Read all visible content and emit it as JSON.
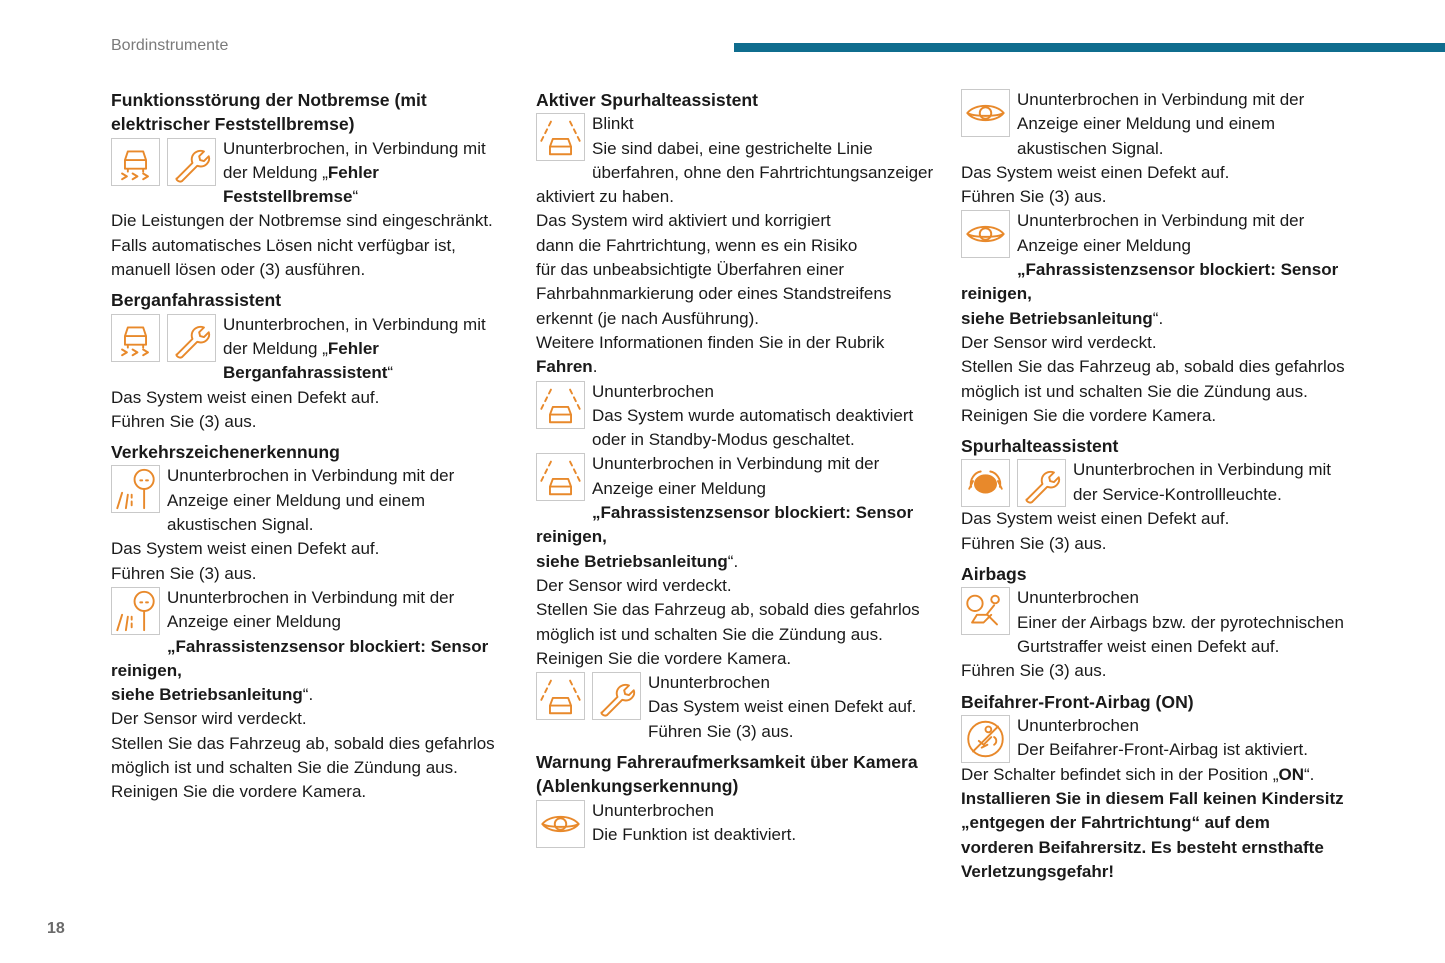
{
  "header": {
    "section": "Bordinstrumente",
    "page_number": "18",
    "bar_color": "#0f6d8e"
  },
  "icon_color": "#e8892b",
  "columns": [
    [
      {
        "type": "h",
        "text": "Funktionsstörung der Notbremse (mit\nelektrischer Feststellbremse)"
      },
      {
        "type": "p",
        "icons": [
          "brake-car",
          "wrench"
        ],
        "segs": [
          {
            "t": "Ununterbrochen, in Verbindung mit\nder Meldung „"
          },
          {
            "t": "Fehler\nFeststellbremse",
            "b": true
          },
          {
            "t": "“"
          }
        ]
      },
      {
        "type": "p",
        "segs": [
          {
            "t": "Die Leistungen der Notbremse sind eingeschränkt.\nFalls automatisches Lösen nicht verfügbar ist,\nmanuell lösen oder (3) ausführen."
          }
        ]
      },
      {
        "type": "h",
        "text": "Berganfahrassistent"
      },
      {
        "type": "p",
        "icons": [
          "brake-car",
          "wrench"
        ],
        "segs": [
          {
            "t": "Ununterbrochen, in Verbindung mit\nder Meldung „"
          },
          {
            "t": "Fehler\nBerganfahrassistent",
            "b": true
          },
          {
            "t": "“"
          }
        ]
      },
      {
        "type": "p",
        "segs": [
          {
            "t": "Das System weist einen Defekt auf."
          }
        ]
      },
      {
        "type": "p",
        "segs": [
          {
            "t": "Führen Sie (3) aus."
          }
        ]
      },
      {
        "type": "h",
        "text": "Verkehrszeichenerkennung"
      },
      {
        "type": "p",
        "icons": [
          "traffic-sign"
        ],
        "segs": [
          {
            "t": "Ununterbrochen in Verbindung mit der\nAnzeige einer Meldung und einem\nakustischen Signal."
          }
        ]
      },
      {
        "type": "p",
        "segs": [
          {
            "t": "Das System weist einen Defekt auf."
          }
        ]
      },
      {
        "type": "p",
        "segs": [
          {
            "t": "Führen Sie (3) aus."
          }
        ]
      },
      {
        "type": "p",
        "icons": [
          "traffic-sign"
        ],
        "segs": [
          {
            "t": "Ununterbrochen in Verbindung mit der\nAnzeige einer Meldung\n"
          },
          {
            "t": "„Fahrassistenzsensor blockiert: Sensor reinigen,\nsiehe Betriebsanleitung",
            "b": true
          },
          {
            "t": "“."
          }
        ]
      },
      {
        "type": "p",
        "segs": [
          {
            "t": "Der Sensor wird verdeckt."
          }
        ]
      },
      {
        "type": "p",
        "segs": [
          {
            "t": "Stellen Sie das Fahrzeug ab, sobald dies gefahrlos\nmöglich ist und schalten Sie die Zündung aus."
          }
        ]
      },
      {
        "type": "p",
        "segs": [
          {
            "t": "Reinigen Sie die vordere Kamera."
          }
        ]
      }
    ],
    [
      {
        "type": "h",
        "text": "Aktiver Spurhalteassistent"
      },
      {
        "type": "p",
        "icons": [
          "lane-assist"
        ],
        "segs": [
          {
            "t": "Blinkt\nSie sind dabei, eine gestrichelte Linie\nüberfahren, ohne den Fahrtrichtungsanzeiger\naktiviert zu haben."
          }
        ]
      },
      {
        "type": "p",
        "segs": [
          {
            "t": "Das System wird aktiviert und korrigiert\ndann die Fahrtrichtung, wenn es ein Risiko\nfür das unbeabsichtigte Überfahren einer\nFahrbahnmarkierung oder eines Standstreifens\nerkennt (je nach Ausführung)."
          }
        ]
      },
      {
        "type": "p",
        "segs": [
          {
            "t": "Weitere Informationen finden Sie in der Rubrik\n"
          },
          {
            "t": "Fahren",
            "b": true
          },
          {
            "t": "."
          }
        ]
      },
      {
        "type": "p",
        "icons": [
          "lane-assist"
        ],
        "segs": [
          {
            "t": "Ununterbrochen\nDas System wurde automatisch deaktiviert\noder in Standby-Modus geschaltet."
          }
        ]
      },
      {
        "type": "p",
        "icons": [
          "lane-assist"
        ],
        "segs": [
          {
            "t": "Ununterbrochen in Verbindung mit der\nAnzeige einer Meldung\n"
          },
          {
            "t": "„Fahrassistenzsensor blockiert: Sensor reinigen,\nsiehe Betriebsanleitung",
            "b": true
          },
          {
            "t": "“."
          }
        ]
      },
      {
        "type": "p",
        "segs": [
          {
            "t": "Der Sensor wird verdeckt."
          }
        ]
      },
      {
        "type": "p",
        "segs": [
          {
            "t": "Stellen Sie das Fahrzeug ab, sobald dies gefahrlos\nmöglich ist und schalten Sie die Zündung aus."
          }
        ]
      },
      {
        "type": "p",
        "segs": [
          {
            "t": "Reinigen Sie die vordere Kamera."
          }
        ]
      },
      {
        "type": "p",
        "icons": [
          "lane-assist",
          "wrench"
        ],
        "segs": [
          {
            "t": "Ununterbrochen\nDas System weist einen Defekt auf.\nFühren Sie (3) aus."
          }
        ]
      },
      {
        "type": "h",
        "text": "Warnung Fahreraufmerksamkeit über Kamera\n(Ablenkungserkennung)"
      },
      {
        "type": "p",
        "icons": [
          "eye"
        ],
        "segs": [
          {
            "t": "Ununterbrochen\nDie Funktion ist deaktiviert."
          }
        ]
      }
    ],
    [
      {
        "type": "p",
        "icons": [
          "eye"
        ],
        "segs": [
          {
            "t": "Ununterbrochen in Verbindung mit der\nAnzeige einer Meldung und einem\nakustischen Signal."
          }
        ]
      },
      {
        "type": "p",
        "segs": [
          {
            "t": "Das System weist einen Defekt auf."
          }
        ]
      },
      {
        "type": "p",
        "segs": [
          {
            "t": "Führen Sie (3) aus."
          }
        ]
      },
      {
        "type": "p",
        "icons": [
          "eye"
        ],
        "segs": [
          {
            "t": "Ununterbrochen in Verbindung mit der\nAnzeige einer Meldung\n"
          },
          {
            "t": "„Fahrassistenzsensor blockiert: Sensor reinigen,\nsiehe Betriebsanleitung",
            "b": true
          },
          {
            "t": "“."
          }
        ]
      },
      {
        "type": "p",
        "segs": [
          {
            "t": "Der Sensor wird verdeckt."
          }
        ]
      },
      {
        "type": "p",
        "segs": [
          {
            "t": "Stellen Sie das Fahrzeug ab, sobald dies gefahrlos\nmöglich ist und schalten Sie die Zündung aus."
          }
        ]
      },
      {
        "type": "p",
        "segs": [
          {
            "t": "Reinigen Sie die vordere Kamera."
          }
        ]
      },
      {
        "type": "h",
        "text": "Spurhalteassistent"
      },
      {
        "type": "p",
        "icons": [
          "steering-hands",
          "wrench"
        ],
        "segs": [
          {
            "t": "Ununterbrochen in Verbindung mit\nder Service-Kontrollleuchte."
          }
        ]
      },
      {
        "type": "p",
        "segs": [
          {
            "t": "Das System weist einen Defekt auf."
          }
        ]
      },
      {
        "type": "p",
        "segs": [
          {
            "t": "Führen Sie (3) aus."
          }
        ]
      },
      {
        "type": "h",
        "text": "Airbags"
      },
      {
        "type": "p",
        "icons": [
          "airbag"
        ],
        "segs": [
          {
            "t": "Ununterbrochen\nEiner der Airbags bzw. der pyrotechnischen\nGurtstraffer weist einen Defekt auf."
          }
        ]
      },
      {
        "type": "p",
        "segs": [
          {
            "t": "Führen Sie (3) aus."
          }
        ]
      },
      {
        "type": "h",
        "text": "Beifahrer-Front-Airbag (ON)"
      },
      {
        "type": "p",
        "icons": [
          "passenger-airbag-on"
        ],
        "segs": [
          {
            "t": "Ununterbrochen\nDer Beifahrer-Front-Airbag ist aktiviert."
          }
        ]
      },
      {
        "type": "p",
        "segs": [
          {
            "t": "Der Schalter befindet sich in der Position „"
          },
          {
            "t": "ON",
            "b": true
          },
          {
            "t": "“."
          }
        ]
      },
      {
        "type": "p",
        "segs": [
          {
            "t": "Installieren Sie in diesem Fall keinen Kindersitz\n„entgegen der Fahrtrichtung“ auf dem\nvorderen Beifahrersitz. Es besteht ernsthafte\nVerletzungsgefahr!",
            "b": true
          }
        ]
      }
    ]
  ]
}
